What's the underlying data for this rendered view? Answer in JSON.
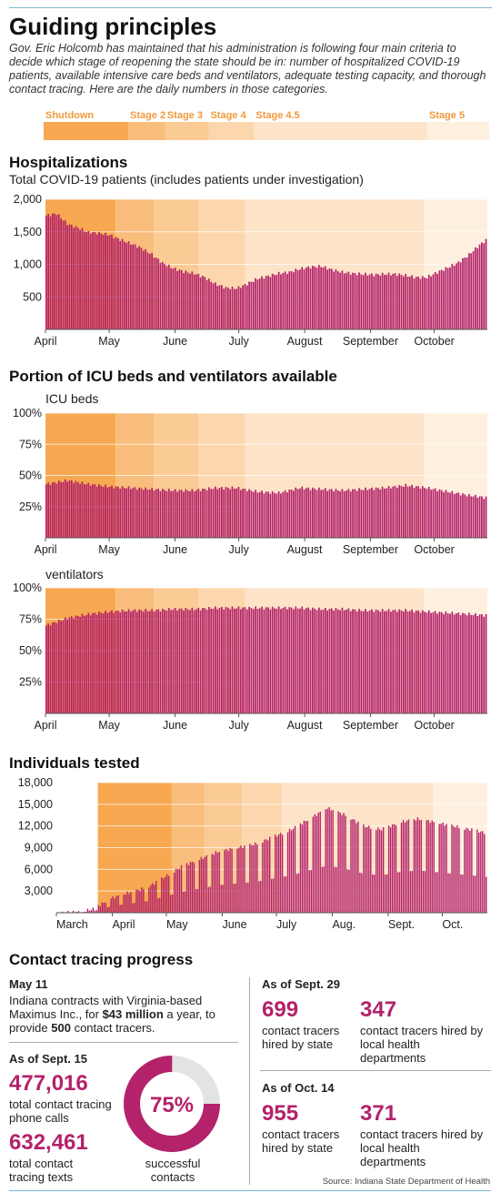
{
  "header": {
    "title": "Guiding principles",
    "intro": "Gov. Eric Holcomb has maintained that his administration is following four main criteria to decide which stage of reopening the state should be in: number of hospitalized COVID-19 patients, available intensive care beds and ventilators, adequate testing capacity, and thorough contact tracing. Here are the daily numbers in those categories."
  },
  "stages": [
    {
      "label": "Shutdown",
      "start": "2020-03-24",
      "color": "#f7a850"
    },
    {
      "label": "Stage 2",
      "start": "2020-05-04",
      "color": "#f9bd7c"
    },
    {
      "label": "Stage 3",
      "start": "2020-05-22",
      "color": "#fbcb95"
    },
    {
      "label": "Stage 4",
      "start": "2020-06-12",
      "color": "#fcd7ad"
    },
    {
      "label": "Stage 4.5",
      "start": "2020-07-04",
      "color": "#fde4c8"
    },
    {
      "label": "Stage 5",
      "start": "2020-09-26",
      "color": "#fef0df"
    }
  ],
  "colors": {
    "bar": "#b3226a",
    "stage_label": "#f09a3c",
    "axis": "#999"
  },
  "chart_data": [
    {
      "type": "bar",
      "title": "Hospitalizations",
      "subtitle": "Total COVID-19 patients (includes patients under investigation)",
      "x_start": "2020-04-01",
      "x_end": "2020-10-26",
      "x_tick_labels": [
        "April",
        "May",
        "June",
        "July",
        "August",
        "September",
        "October"
      ],
      "y_tick_labels": [
        "2,000",
        "1,500",
        "1,000",
        "500"
      ],
      "ylim": [
        0,
        2000
      ],
      "anchors": [
        [
          0,
          1750
        ],
        [
          5,
          1780
        ],
        [
          10,
          1620
        ],
        [
          15,
          1560
        ],
        [
          20,
          1490
        ],
        [
          25,
          1480
        ],
        [
          30,
          1450
        ],
        [
          35,
          1380
        ],
        [
          40,
          1320
        ],
        [
          45,
          1250
        ],
        [
          50,
          1150
        ],
        [
          55,
          1020
        ],
        [
          60,
          940
        ],
        [
          65,
          890
        ],
        [
          70,
          860
        ],
        [
          75,
          800
        ],
        [
          80,
          700
        ],
        [
          85,
          640
        ],
        [
          90,
          630
        ],
        [
          95,
          700
        ],
        [
          100,
          780
        ],
        [
          105,
          820
        ],
        [
          110,
          860
        ],
        [
          115,
          880
        ],
        [
          120,
          930
        ],
        [
          125,
          960
        ],
        [
          130,
          970
        ],
        [
          135,
          920
        ],
        [
          140,
          880
        ],
        [
          145,
          860
        ],
        [
          150,
          850
        ],
        [
          155,
          840
        ],
        [
          160,
          850
        ],
        [
          165,
          850
        ],
        [
          170,
          830
        ],
        [
          175,
          800
        ],
        [
          180,
          800
        ],
        [
          185,
          880
        ],
        [
          190,
          950
        ],
        [
          195,
          1030
        ],
        [
          200,
          1150
        ],
        [
          205,
          1300
        ],
        [
          210,
          1420
        ],
        [
          215,
          1560
        ],
        [
          209,
          1380
        ]
      ],
      "n_days": 209
    },
    {
      "type": "bar",
      "section_title": "Portion of ICU beds and ventilators available",
      "title": "ICU beds",
      "x_start": "2020-04-01",
      "x_end": "2020-10-26",
      "x_tick_labels": [
        "April",
        "May",
        "June",
        "July",
        "August",
        "September",
        "October"
      ],
      "y_tick_labels": [
        "100%",
        "75%",
        "50%",
        "25%"
      ],
      "ylim": [
        0,
        100
      ],
      "anchors": [
        [
          0,
          43
        ],
        [
          10,
          46
        ],
        [
          20,
          43
        ],
        [
          30,
          41
        ],
        [
          40,
          40
        ],
        [
          50,
          39
        ],
        [
          60,
          38
        ],
        [
          70,
          38
        ],
        [
          80,
          40
        ],
        [
          90,
          40
        ],
        [
          100,
          37
        ],
        [
          110,
          36
        ],
        [
          120,
          40
        ],
        [
          130,
          39
        ],
        [
          140,
          38
        ],
        [
          150,
          39
        ],
        [
          160,
          40
        ],
        [
          170,
          42
        ],
        [
          180,
          40
        ],
        [
          190,
          37
        ],
        [
          200,
          34
        ],
        [
          209,
          32
        ]
      ],
      "n_days": 209
    },
    {
      "type": "bar",
      "title": "ventilators",
      "x_start": "2020-04-01",
      "x_end": "2020-10-26",
      "x_tick_labels": [
        "April",
        "May",
        "June",
        "July",
        "August",
        "September",
        "October"
      ],
      "y_tick_labels": [
        "100%",
        "75%",
        "50%",
        "25%"
      ],
      "ylim": [
        0,
        100
      ],
      "anchors": [
        [
          0,
          70
        ],
        [
          10,
          76
        ],
        [
          20,
          79
        ],
        [
          30,
          81
        ],
        [
          40,
          82
        ],
        [
          50,
          82
        ],
        [
          60,
          83
        ],
        [
          70,
          83
        ],
        [
          80,
          84
        ],
        [
          90,
          84
        ],
        [
          100,
          84
        ],
        [
          110,
          84
        ],
        [
          120,
          84
        ],
        [
          130,
          83
        ],
        [
          140,
          83
        ],
        [
          150,
          82
        ],
        [
          160,
          82
        ],
        [
          170,
          82
        ],
        [
          180,
          81
        ],
        [
          190,
          80
        ],
        [
          200,
          79
        ],
        [
          209,
          78
        ]
      ],
      "n_days": 209
    },
    {
      "type": "bar",
      "title": "Individuals tested",
      "x_start": "2020-03-01",
      "x_end": "2020-10-26",
      "x_tick_labels": [
        "March",
        "April",
        "May",
        "June",
        "July",
        "Aug.",
        "Sept.",
        "Oct."
      ],
      "y_tick_labels": [
        "18,000",
        "15,000",
        "12,000",
        "9,000",
        "6,000",
        "3,000"
      ],
      "ylim": [
        0,
        18000
      ],
      "anchors": [
        [
          0,
          0
        ],
        [
          12,
          100
        ],
        [
          20,
          500
        ],
        [
          30,
          2000
        ],
        [
          40,
          2800
        ],
        [
          50,
          3500
        ],
        [
          60,
          5000
        ],
        [
          70,
          6500
        ],
        [
          80,
          7500
        ],
        [
          90,
          8500
        ],
        [
          100,
          9000
        ],
        [
          110,
          9500
        ],
        [
          120,
          10500
        ],
        [
          130,
          11500
        ],
        [
          140,
          13000
        ],
        [
          150,
          14500
        ],
        [
          160,
          13500
        ],
        [
          170,
          12000
        ],
        [
          180,
          11500
        ],
        [
          190,
          12500
        ],
        [
          200,
          13000
        ],
        [
          210,
          12500
        ],
        [
          239,
          11000
        ]
      ],
      "n_days": 239
    }
  ],
  "contact_tracing": {
    "title": "Contact tracing progress",
    "may11": {
      "heading": "May 11",
      "text_a": "Indiana contracts with Virginia-based Maximus Inc., for ",
      "amount": "$43 million",
      "text_b": " a year, to provide ",
      "count": "500",
      "text_c": " contact tracers."
    },
    "sept15": {
      "heading": "As of Sept. 15",
      "calls": "477,016",
      "calls_label": "total contact tracing phone calls",
      "texts": "632,461",
      "texts_label": "total contact tracing texts",
      "donut_pct": "75%",
      "donut_value": 75,
      "donut_label": "successful contacts"
    },
    "sept29": {
      "heading": "As of Sept. 29",
      "state": "699",
      "state_label": "contact tracers hired by state",
      "local": "347",
      "local_label": "contact tracers hired by local health departments"
    },
    "oct14": {
      "heading": "As of Oct. 14",
      "state": "955",
      "state_label": "contact tracers hired by state",
      "local": "371",
      "local_label": "contact tracers hired by local health departments"
    },
    "source": "Source: Indiana State Department of Health"
  }
}
